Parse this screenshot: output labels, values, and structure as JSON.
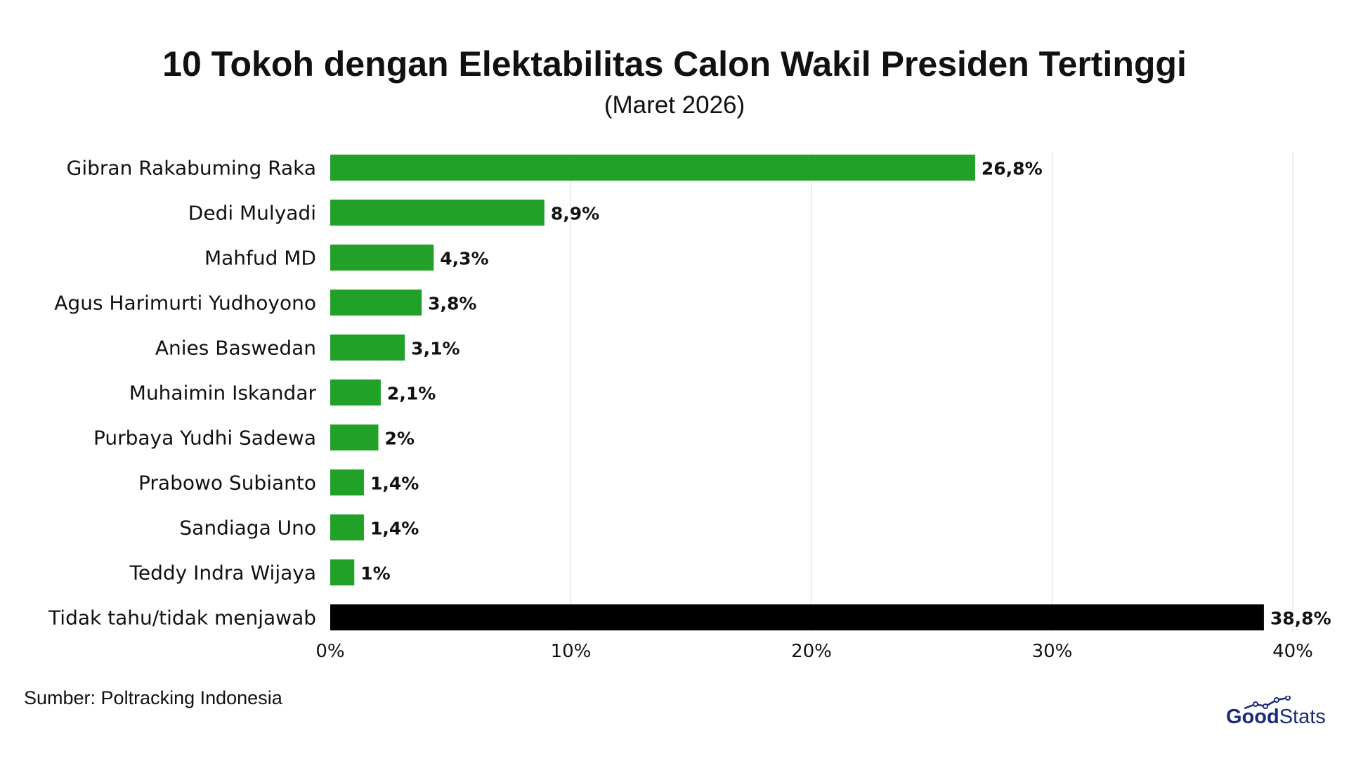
{
  "chart_data": {
    "type": "bar",
    "orientation": "horizontal",
    "title": "10 Tokoh dengan Elektabilitas Calon Wakil Presiden Tertinggi",
    "subtitle": "(Maret 2026)",
    "categories": [
      "Gibran Rakabuming Raka",
      "Dedi Mulyadi",
      "Mahfud MD",
      "Agus Harimurti Yudhoyono",
      "Anies Baswedan",
      "Muhaimin Iskandar",
      "Purbaya Yudhi Sadewa",
      "Prabowo Subianto",
      "Sandiaga Uno",
      "Teddy Indra Wijaya",
      "Tidak tahu/tidak menjawab"
    ],
    "values": [
      26.8,
      8.9,
      4.3,
      3.8,
      3.1,
      2.1,
      2,
      1.4,
      1.4,
      1,
      38.8
    ],
    "value_labels": [
      "26,8%",
      "8,9%",
      "4,3%",
      "3,8%",
      "3,1%",
      "2,1%",
      "2%",
      "1,4%",
      "1,4%",
      "1%",
      "38,8%"
    ],
    "bar_colors": [
      "#22a129",
      "#22a129",
      "#22a129",
      "#22a129",
      "#22a129",
      "#22a129",
      "#22a129",
      "#22a129",
      "#22a129",
      "#22a129",
      "#000000"
    ],
    "xlim": [
      0,
      40
    ],
    "x_ticks": [
      0,
      10,
      20,
      30,
      40
    ],
    "x_tick_labels": [
      "0%",
      "10%",
      "20%",
      "30%",
      "40%"
    ],
    "grid": "vertical",
    "legend": "none",
    "source": "Sumber: Poltracking Indonesia"
  },
  "brand": {
    "logo_good": "Good",
    "logo_stats": "Stats"
  },
  "colors": {
    "highlight": "#22a129",
    "other": "#000000",
    "grid": "#dddddd",
    "brand": "#1b2a78"
  }
}
